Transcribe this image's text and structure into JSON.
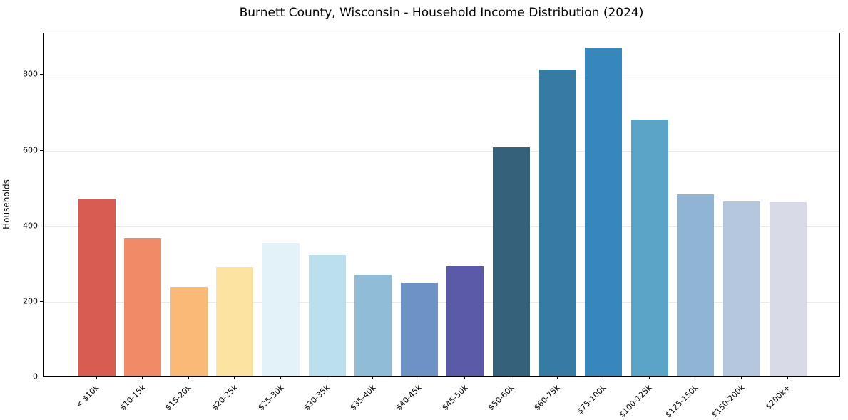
{
  "chart_data": {
    "type": "bar",
    "title": "Burnett County, Wisconsin - Household Income Distribution (2024)",
    "xlabel": "",
    "ylabel": "Households",
    "categories": [
      "< $10k",
      "$10-15k",
      "$15-20k",
      "$20-25k",
      "$25-30k",
      "$30-35k",
      "$35-40k",
      "$40-45k",
      "$45-50k",
      "$50-60k",
      "$60-75k",
      "$75-100k",
      "$100-125k",
      "$125-150k",
      "$150-200k",
      "$200k+"
    ],
    "values": [
      470,
      364,
      236,
      288,
      350,
      320,
      267,
      247,
      290,
      605,
      810,
      868,
      678,
      481,
      461,
      459
    ],
    "bar_colors": [
      "#d85c52",
      "#f08a67",
      "#fbb977",
      "#fde3a2",
      "#e3f1f8",
      "#bbdfed",
      "#90bcd8",
      "#6c93c4",
      "#5a5aa9",
      "#36617b",
      "#377ba3",
      "#3787bd",
      "#5ba3c7",
      "#8fb4d4",
      "#b5c7de",
      "#d8dae8"
    ],
    "ylim": [
      0,
      910
    ],
    "yticks": [
      0,
      200,
      400,
      600,
      800
    ],
    "grid": "horizontal",
    "legend": "none",
    "background_color": "#ffffff",
    "spine_color": "#000000",
    "gridline_color": "#e9e9e9"
  }
}
